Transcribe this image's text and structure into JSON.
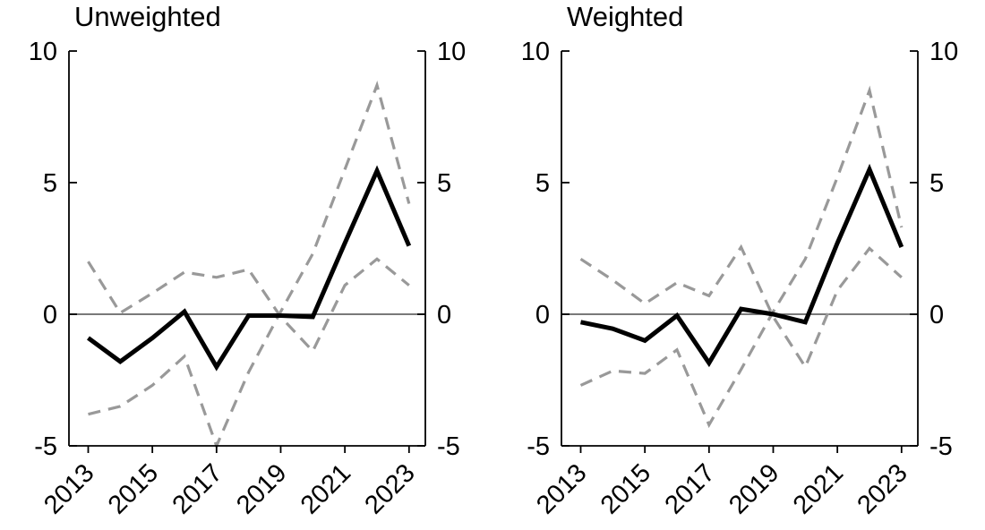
{
  "figure_background": "#ffffff",
  "colors": {
    "estimate_line": "#000000",
    "band_line": "#999999",
    "zero_line": "#4d4d4d"
  },
  "chart_data": [
    {
      "key": "unweighted",
      "title": "Unweighted",
      "type": "line",
      "x": [
        2013,
        2014,
        2015,
        2016,
        2017,
        2018,
        2019,
        2020,
        2021,
        2022,
        2023
      ],
      "series": [
        {
          "name": "estimate",
          "style": "solid",
          "color": "#000000",
          "values": [
            -0.9,
            -1.8,
            -0.9,
            0.1,
            -2.0,
            -0.05,
            -0.05,
            -0.1,
            2.7,
            5.45,
            2.6
          ]
        },
        {
          "name": "band-line-1",
          "style": "dashed",
          "color": "#999999",
          "values": [
            2.0,
            0.05,
            0.8,
            1.6,
            1.4,
            1.7,
            -0.1,
            -1.4,
            1.1,
            2.1,
            1.1
          ]
        },
        {
          "name": "band-line-2",
          "style": "dashed",
          "color": "#999999",
          "values": [
            -3.8,
            -3.5,
            -2.7,
            -1.6,
            -5.0,
            -2.2,
            0.1,
            2.3,
            5.5,
            8.7,
            4.2
          ]
        }
      ],
      "ylim": [
        -5,
        10
      ],
      "yticks": [
        10,
        5,
        0,
        -5
      ],
      "xticks": [
        2013,
        2015,
        2017,
        2019,
        2021,
        2023
      ],
      "zero_line": true,
      "y_labels_both_sides": true,
      "grid": false,
      "legend": null
    },
    {
      "key": "weighted",
      "title": "Weighted",
      "type": "line",
      "x": [
        2013,
        2014,
        2015,
        2016,
        2017,
        2018,
        2019,
        2020,
        2021,
        2022,
        2023
      ],
      "series": [
        {
          "name": "estimate",
          "style": "solid",
          "color": "#000000",
          "values": [
            -0.3,
            -0.55,
            -1.0,
            -0.05,
            -1.85,
            0.2,
            0.0,
            -0.3,
            2.7,
            5.5,
            2.55
          ]
        },
        {
          "name": "band-line-1",
          "style": "dashed",
          "color": "#999999",
          "values": [
            2.1,
            1.3,
            0.4,
            1.2,
            0.7,
            2.55,
            -0.1,
            -2.0,
            0.9,
            2.5,
            1.4
          ]
        },
        {
          "name": "band-line-2",
          "style": "dashed",
          "color": "#999999",
          "values": [
            -2.7,
            -2.15,
            -2.25,
            -1.35,
            -4.2,
            -2.1,
            0.1,
            2.1,
            5.2,
            8.5,
            3.3
          ]
        }
      ],
      "ylim": [
        -5,
        10
      ],
      "yticks": [
        10,
        5,
        0,
        -5
      ],
      "xticks": [
        2013,
        2015,
        2017,
        2019,
        2021,
        2023
      ],
      "zero_line": true,
      "y_labels_both_sides": true,
      "grid": false,
      "legend": null
    }
  ]
}
